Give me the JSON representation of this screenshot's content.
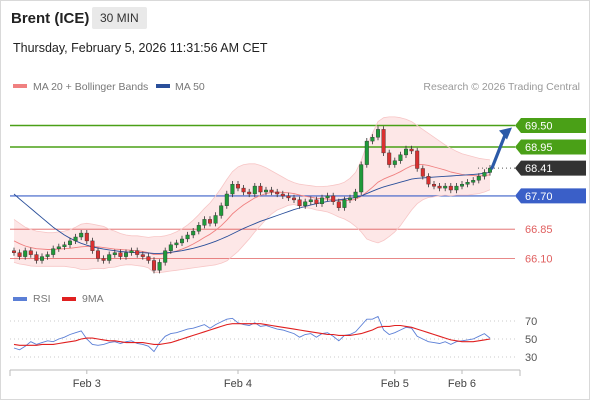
{
  "header": {
    "instrument": "Brent (ICE)",
    "timeframe": "30 MIN",
    "timestamp": "Thursday, February 5, 2026 11:31:56 AM CET"
  },
  "legend": {
    "ma20": {
      "label": "MA 20 + Bollinger Bands",
      "color": "#f08080"
    },
    "ma50": {
      "label": "MA 50",
      "color": "#2a4f9a"
    },
    "rsi": {
      "label": "RSI",
      "color": "#5b7fd6"
    },
    "rsi_ma": {
      "label": "9MA",
      "color": "#e02020"
    }
  },
  "copyright": "Research © 2026 Trading Central",
  "colors": {
    "resistance": "#4aa017",
    "support": "#3a5fc8",
    "pivot": "#3a5fc8",
    "minor_support": "#e06060",
    "current": "#333333",
    "bull_candle": "#1f9a3a",
    "bear_candle": "#d93030",
    "arrow": "#2b5aa8"
  },
  "chart_data": [
    {
      "type": "candlestick",
      "title": "",
      "x_ticks": [
        {
          "label": "Feb 3",
          "index": 13
        },
        {
          "label": "Feb 4",
          "index": 40
        },
        {
          "label": "Feb 5",
          "index": 68
        },
        {
          "label": "Feb 6",
          "index": 80
        }
      ],
      "ylim": [
        65.5,
        70.1
      ],
      "levels": [
        {
          "value": 69.5,
          "label": "69.50",
          "kind": "resistance"
        },
        {
          "value": 68.95,
          "label": "68.95",
          "kind": "resistance"
        },
        {
          "value": 68.41,
          "label": "68.41",
          "kind": "current"
        },
        {
          "value": 67.7,
          "label": "67.70",
          "kind": "pivot"
        },
        {
          "value": 66.85,
          "label": "66.85",
          "kind": "minor_support"
        },
        {
          "value": 66.1,
          "label": "66.10",
          "kind": "minor_support"
        }
      ],
      "close": [
        66.25,
        66.15,
        66.3,
        66.2,
        66.05,
        66.15,
        66.2,
        66.35,
        66.4,
        66.45,
        66.55,
        66.65,
        66.75,
        66.55,
        66.3,
        66.1,
        66.05,
        66.2,
        66.25,
        66.15,
        66.25,
        66.3,
        66.2,
        66.15,
        66.05,
        65.8,
        66.0,
        66.3,
        66.45,
        66.5,
        66.6,
        66.7,
        66.8,
        66.95,
        67.1,
        67.0,
        67.2,
        67.45,
        67.75,
        68.0,
        67.9,
        67.8,
        67.75,
        67.95,
        67.8,
        67.85,
        67.8,
        67.75,
        67.7,
        67.65,
        67.6,
        67.45,
        67.55,
        67.6,
        67.5,
        67.65,
        67.7,
        67.55,
        67.4,
        67.6,
        67.65,
        67.8,
        68.5,
        69.1,
        69.2,
        69.4,
        68.8,
        68.5,
        68.6,
        68.75,
        68.9,
        68.85,
        68.4,
        68.2,
        68.0,
        67.95,
        67.9,
        67.95,
        67.85,
        67.95,
        68.0,
        68.05,
        68.1,
        68.2,
        68.3,
        68.41
      ],
      "ma20": [
        66.55,
        66.48,
        66.42,
        66.38,
        66.35,
        66.34,
        66.33,
        66.33,
        66.34,
        66.35,
        66.36,
        66.38,
        66.4,
        66.41,
        66.41,
        66.4,
        66.38,
        66.36,
        66.34,
        66.33,
        66.32,
        66.31,
        66.3,
        66.28,
        66.25,
        66.2,
        66.2,
        66.22,
        66.25,
        66.29,
        66.34,
        66.4,
        66.47,
        66.55,
        66.64,
        66.72,
        66.82,
        66.94,
        67.08,
        67.24,
        67.36,
        67.47,
        67.56,
        67.65,
        67.71,
        67.76,
        67.79,
        67.8,
        67.79,
        67.78,
        67.76,
        67.72,
        67.69,
        67.67,
        67.64,
        67.63,
        67.62,
        67.6,
        67.58,
        67.58,
        67.59,
        67.61,
        67.69,
        67.8,
        67.92,
        68.05,
        68.13,
        68.19,
        68.25,
        68.32,
        68.4,
        68.47,
        68.5,
        68.5,
        68.48,
        68.44,
        68.4,
        68.36,
        68.31,
        68.28,
        68.25,
        68.23,
        68.22,
        68.21,
        68.22,
        68.24
      ],
      "bb_upper": [
        67.1,
        67.0,
        66.9,
        66.85,
        66.8,
        66.78,
        66.76,
        66.76,
        66.78,
        66.8,
        66.84,
        66.9,
        66.98,
        67.0,
        66.98,
        66.95,
        66.92,
        66.85,
        66.8,
        66.74,
        66.7,
        66.68,
        66.68,
        66.66,
        66.64,
        66.66,
        66.66,
        66.68,
        66.72,
        66.78,
        66.86,
        66.96,
        67.08,
        67.22,
        67.38,
        67.52,
        67.7,
        67.9,
        68.12,
        68.32,
        68.44,
        68.5,
        68.52,
        68.52,
        68.48,
        68.42,
        68.34,
        68.26,
        68.18,
        68.1,
        68.04,
        68.0,
        67.98,
        67.96,
        67.94,
        67.94,
        67.95,
        67.97,
        68.0,
        68.05,
        68.15,
        68.3,
        68.6,
        69.0,
        69.3,
        69.6,
        69.7,
        69.72,
        69.72,
        69.7,
        69.66,
        69.6,
        69.5,
        69.4,
        69.3,
        69.2,
        69.1,
        69.0,
        68.92,
        68.84,
        68.78,
        68.74,
        68.7,
        68.66,
        68.64,
        68.62
      ],
      "bb_lower": [
        66.0,
        65.96,
        65.94,
        65.91,
        65.9,
        65.9,
        65.9,
        65.9,
        65.9,
        65.9,
        65.88,
        65.86,
        65.82,
        65.82,
        65.84,
        65.85,
        65.84,
        65.87,
        65.88,
        65.92,
        65.94,
        65.94,
        65.92,
        65.9,
        65.86,
        65.74,
        65.74,
        65.76,
        65.78,
        65.8,
        65.82,
        65.84,
        65.86,
        65.88,
        65.9,
        65.92,
        65.94,
        65.98,
        66.04,
        66.16,
        66.28,
        66.44,
        66.6,
        66.78,
        66.94,
        67.1,
        67.24,
        67.34,
        67.4,
        67.46,
        67.48,
        67.44,
        67.4,
        67.38,
        67.34,
        67.32,
        67.29,
        67.23,
        67.16,
        67.11,
        67.03,
        66.92,
        66.78,
        66.6,
        66.54,
        66.5,
        66.56,
        66.66,
        66.78,
        66.94,
        67.14,
        67.34,
        67.5,
        67.6,
        67.66,
        67.68,
        67.7,
        67.72,
        67.7,
        67.72,
        67.72,
        67.72,
        67.74,
        67.76,
        67.8,
        67.86
      ],
      "ma50": [
        67.75,
        67.62,
        67.5,
        67.38,
        67.26,
        67.14,
        67.02,
        66.9,
        66.8,
        66.7,
        66.62,
        66.55,
        66.49,
        66.44,
        66.4,
        66.37,
        66.34,
        66.32,
        66.3,
        66.28,
        66.27,
        66.26,
        66.25,
        66.25,
        66.24,
        66.23,
        66.23,
        66.24,
        66.26,
        66.28,
        66.3,
        66.33,
        66.36,
        66.4,
        66.44,
        66.49,
        66.54,
        66.6,
        66.66,
        66.73,
        66.8,
        66.87,
        66.93,
        66.99,
        67.05,
        67.1,
        67.15,
        67.2,
        67.25,
        67.3,
        67.35,
        67.39,
        67.43,
        67.47,
        67.5,
        67.53,
        67.56,
        67.58,
        67.6,
        67.62,
        67.64,
        67.66,
        67.7,
        67.76,
        67.82,
        67.88,
        67.93,
        67.97,
        68.01,
        68.05,
        68.09,
        68.13,
        68.15,
        68.16,
        68.17,
        68.18,
        68.19,
        68.2,
        68.21,
        68.22,
        68.23,
        68.24,
        68.25,
        68.26,
        68.28,
        68.3
      ]
    },
    {
      "type": "line",
      "title": "",
      "ylim": [
        20,
        80
      ],
      "y_ticks": [
        70,
        50,
        30
      ],
      "series": [
        {
          "name": "RSI",
          "values": [
            40,
            38,
            42,
            47,
            44,
            46,
            48,
            47,
            50,
            52,
            55,
            57,
            59,
            50,
            44,
            43,
            44,
            46,
            47,
            45,
            47,
            48,
            45,
            44,
            42,
            36,
            46,
            53,
            56,
            57,
            59,
            61,
            62,
            64,
            66,
            62,
            66,
            69,
            72,
            73,
            68,
            66,
            65,
            68,
            64,
            65,
            63,
            61,
            60,
            58,
            56,
            52,
            55,
            56,
            52,
            56,
            57,
            53,
            48,
            54,
            55,
            58,
            65,
            72,
            72,
            75,
            60,
            55,
            57,
            60,
            63,
            62,
            53,
            50,
            47,
            46,
            45,
            47,
            44,
            47,
            48,
            49,
            50,
            53,
            56,
            51
          ]
        },
        {
          "name": "9MA",
          "values": [
            44,
            43,
            43,
            43,
            43,
            44,
            44,
            44,
            45,
            46,
            47,
            48,
            50,
            51,
            51,
            50,
            49,
            48,
            48,
            47,
            46,
            46,
            46,
            46,
            45,
            44,
            44,
            45,
            46,
            48,
            50,
            52,
            54,
            56,
            58,
            60,
            62,
            64,
            66,
            67,
            67,
            67,
            67,
            67,
            67,
            66,
            65,
            64,
            63,
            62,
            61,
            60,
            59,
            58,
            57,
            56,
            55,
            55,
            54,
            54,
            54,
            55,
            56,
            58,
            60,
            63,
            64,
            64,
            65,
            65,
            64,
            63,
            61,
            59,
            57,
            55,
            53,
            51,
            49,
            48,
            47,
            47,
            47,
            48,
            49,
            50
          ]
        }
      ]
    }
  ]
}
